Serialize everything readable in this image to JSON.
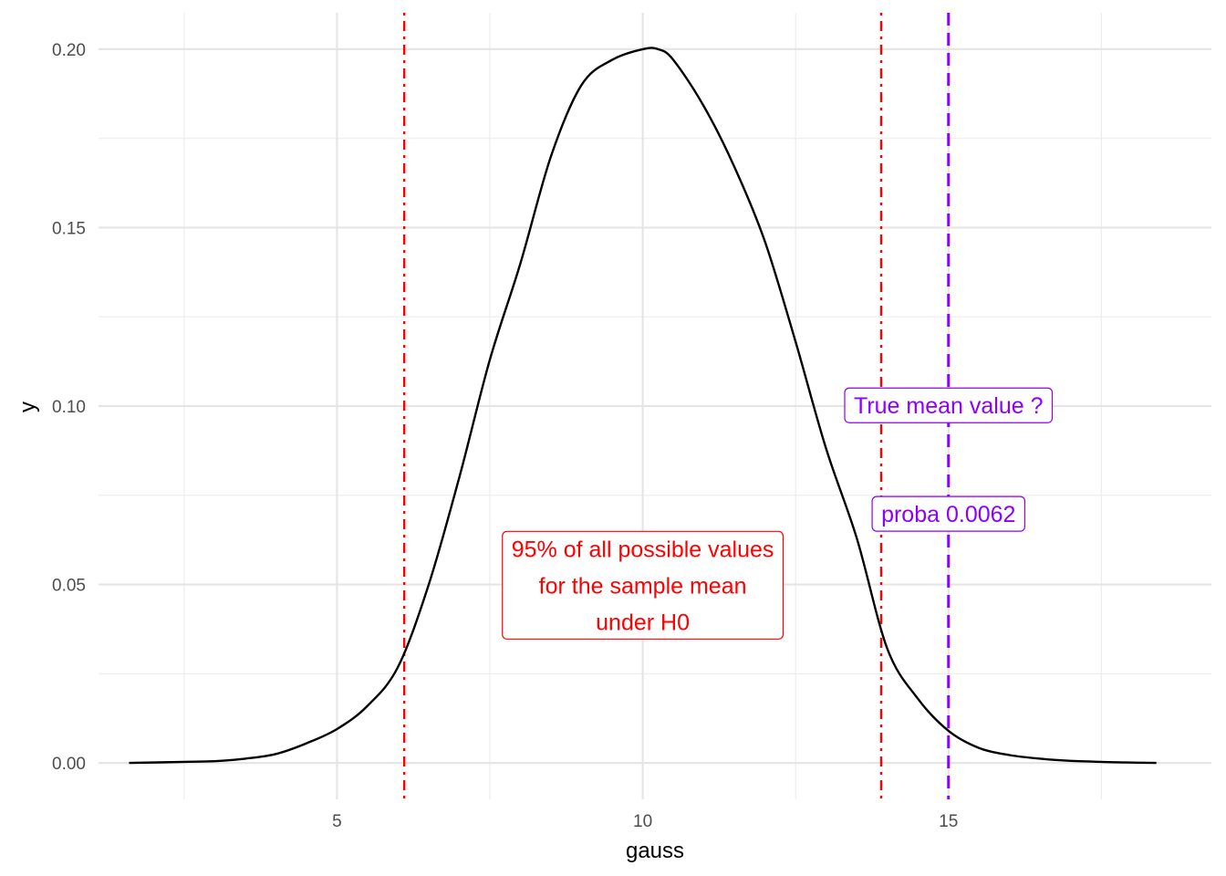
{
  "chart_data": {
    "type": "line",
    "title": "",
    "xlabel": "gauss",
    "ylabel": "y",
    "xlim": [
      1.1,
      19.3
    ],
    "ylim": [
      -0.0102,
      0.2102
    ],
    "x_ticks": [
      5,
      10,
      15
    ],
    "x_tick_labels": [
      "5",
      "10",
      "15"
    ],
    "x_minor_ticks": [
      2.5,
      7.5,
      12.5,
      17.5
    ],
    "y_ticks": [
      0.0,
      0.05,
      0.1,
      0.15,
      0.2
    ],
    "y_tick_labels": [
      "0.00",
      "0.05",
      "0.10",
      "0.15",
      "0.20"
    ],
    "y_minor_ticks": [
      0.025,
      0.075,
      0.125,
      0.175
    ],
    "grid": true,
    "series": [
      {
        "color": "#000000",
        "x": [
          1.6,
          2.5,
          3.0,
          3.5,
          4.0,
          4.5,
          5.0,
          5.5,
          6.0,
          6.5,
          7.0,
          7.5,
          8.0,
          8.5,
          9.0,
          9.5,
          10.0,
          10.25,
          10.5,
          11.0,
          11.5,
          12.0,
          12.5,
          13.0,
          13.5,
          14.0,
          14.5,
          15.0,
          15.5,
          16.0,
          16.5,
          17.0,
          17.5,
          18.0,
          18.4
        ],
        "y": [
          0.0,
          0.0003,
          0.0005,
          0.0012,
          0.0025,
          0.0055,
          0.0095,
          0.016,
          0.027,
          0.05,
          0.08,
          0.113,
          0.14,
          0.17,
          0.19,
          0.197,
          0.2,
          0.2,
          0.197,
          0.184,
          0.167,
          0.146,
          0.118,
          0.088,
          0.063,
          0.032,
          0.018,
          0.009,
          0.0042,
          0.0022,
          0.0012,
          0.0006,
          0.0003,
          0.0001,
          0.0
        ]
      }
    ],
    "vlines": [
      {
        "x": 6.1,
        "color": "#ff0000",
        "style": "dotdash"
      },
      {
        "x": 13.9,
        "color": "#ff0000",
        "style": "dotdash"
      },
      {
        "x": 15.0,
        "color": "#8b00ff",
        "style": "dashed"
      }
    ],
    "annotations": [
      {
        "lines": [
          "95% of all possible values",
          "for the sample mean",
          "under H0"
        ],
        "x": 10.0,
        "y": 0.0498,
        "color": "#ff0000"
      },
      {
        "lines": [
          "True mean value ?"
        ],
        "x": 15.0,
        "y": 0.1002,
        "color": "#8b00ff"
      },
      {
        "lines": [
          "proba 0.0062"
        ],
        "x": 15.0,
        "y": 0.0698,
        "color": "#8b00ff"
      }
    ]
  }
}
